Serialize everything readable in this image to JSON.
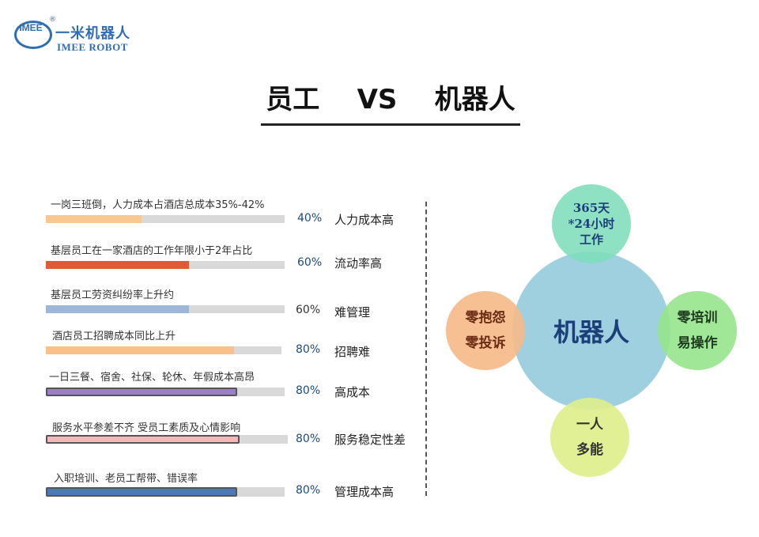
{
  "logo": {
    "mark": "IMEE",
    "registered": "®",
    "cn": "一米机器人",
    "en": "IMEE ROBOT"
  },
  "title": "员工    VS    机器人",
  "rows": [
    {
      "desc": "一岗三班倒，人力成本占酒店总成本35%-42%",
      "percent_label": "40%",
      "value": 40,
      "tag": "人力成本高",
      "color": "#f9c890"
    },
    {
      "desc": "基层员工在一家酒店的工作年限小于2年占比",
      "percent_label": "60%",
      "value": 60,
      "tag": "流动率高",
      "color": "#e05a35"
    },
    {
      "desc": "基层员工劳资纠纷率上升约",
      "percent_label": "60%",
      "value": 60,
      "tag": "难管理",
      "color": "#9db7d8"
    },
    {
      "desc": "酒店员工招聘成本同比上升",
      "percent_label": "80%",
      "value": 80,
      "tag": "招聘难",
      "color": "#f9c08a"
    },
    {
      "desc": "一日三餐、宿舍、社保、轮休、年假成本高昂",
      "percent_label": "80%",
      "value": 80,
      "tag": "高成本",
      "color": "#9b7fc9"
    },
    {
      "desc": "服务水平参差不齐 受员工素质及心情影响",
      "percent_label": "80%",
      "value": 80,
      "tag": "服务稳定性差",
      "color": "#f4b8b8"
    },
    {
      "desc": "入职培训、老员工帮带、错误率",
      "percent_label": "80%",
      "value": 80,
      "tag": "管理成本高",
      "color": "#4a78b8"
    }
  ],
  "diagram": {
    "center": "机器人",
    "top": [
      "365天",
      "*24小时",
      "工作"
    ],
    "left": [
      "零抱怨",
      "零投诉"
    ],
    "right": [
      "零培训",
      "易操作"
    ],
    "bottom": [
      "一人",
      "多能"
    ]
  }
}
